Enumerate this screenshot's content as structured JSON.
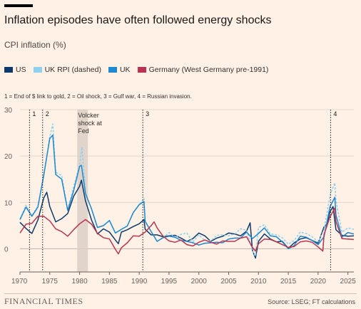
{
  "title": "Inflation episodes have often followed energy shocks",
  "subtitle": "CPI inflation (%)",
  "note": "1 = End of $ link to gold, 2 = Oil shock, 3 = Gulf war, 4 = Russian invasion.",
  "footer": {
    "brand": "FINANCIAL TIMES",
    "source": "Source: LSEG; FT calculations"
  },
  "colors": {
    "background": "#fff1e5",
    "us": "#0d3a6b",
    "uk_rpi": "#8ed0ee",
    "uk": "#1e88d0",
    "germany": "#b8344f",
    "shading": "#d9cdc3"
  },
  "chart_data": {
    "type": "line",
    "xlabel": "",
    "ylabel": "",
    "xlim": [
      1970,
      2026
    ],
    "ylim": [
      -5,
      30
    ],
    "xticks": [
      1970,
      1975,
      1980,
      1985,
      1990,
      1995,
      2000,
      2005,
      2010,
      2015,
      2020,
      2025
    ],
    "yticks": [
      0,
      10,
      20,
      30
    ],
    "legend_position": "top",
    "events": [
      {
        "label": "1",
        "x": 1971.6
      },
      {
        "label": "2",
        "x": 1973.8
      },
      {
        "label": "3",
        "x": 1990.6
      },
      {
        "label": "4",
        "x": 2022.1
      }
    ],
    "shaded_periods": [
      {
        "start": 1979.6,
        "end": 1981.4,
        "label": "Volcker shock at Fed"
      }
    ],
    "series": [
      {
        "name": "US",
        "color": "#0d3a6b",
        "dash": false,
        "x": [
          1970,
          1971,
          1972,
          1973,
          1974,
          1974.5,
          1975,
          1976,
          1977,
          1978,
          1979,
          1980,
          1980.3,
          1981,
          1982,
          1983,
          1984,
          1985,
          1986,
          1986.5,
          1987,
          1988,
          1989,
          1990,
          1990.8,
          1991,
          1992,
          1993,
          1994,
          1995,
          1996,
          1997,
          1998,
          1999,
          2000,
          2001,
          2002,
          2003,
          2004,
          2005,
          2006,
          2007,
          2008,
          2008.6,
          2009,
          2009.5,
          2010,
          2011,
          2012,
          2013,
          2014,
          2015,
          2016,
          2017,
          2018,
          2019,
          2020,
          2021,
          2021.5,
          2022,
          2022.5,
          2023,
          2024,
          2025,
          2026
        ],
        "y": [
          5.7,
          4.4,
          3.3,
          6.2,
          11.0,
          12.2,
          9.1,
          5.8,
          6.5,
          7.6,
          11.3,
          13.5,
          14.8,
          10.3,
          6.2,
          3.2,
          4.3,
          3.6,
          1.9,
          1.1,
          3.6,
          4.1,
          4.8,
          5.4,
          6.3,
          4.2,
          3.0,
          3.0,
          2.6,
          2.8,
          2.9,
          2.3,
          1.6,
          2.2,
          3.4,
          2.8,
          1.6,
          2.3,
          2.7,
          3.4,
          3.2,
          2.8,
          3.8,
          5.6,
          -0.4,
          -2.0,
          1.6,
          3.2,
          2.1,
          1.5,
          1.6,
          0.1,
          1.3,
          2.1,
          2.4,
          1.8,
          1.2,
          4.7,
          5.4,
          8.0,
          9.1,
          4.1,
          2.9,
          2.7,
          2.8
        ]
      },
      {
        "name": "UK RPI (dashed)",
        "color": "#8ed0ee",
        "dash": true,
        "x": [
          1970,
          1971,
          1972,
          1973,
          1974,
          1975,
          1975.5,
          1976,
          1977,
          1978,
          1979,
          1980,
          1980.4,
          1981,
          1982,
          1983,
          1984,
          1985,
          1986,
          1987,
          1988,
          1989,
          1990,
          1990.8,
          1991,
          1992,
          1993,
          1994,
          1995,
          1996,
          1997,
          1998,
          1999,
          2000,
          2001,
          2002,
          2003,
          2004,
          2005,
          2006,
          2007,
          2008,
          2009,
          2009.5,
          2010,
          2011,
          2012,
          2013,
          2014,
          2015,
          2016,
          2017,
          2018,
          2019,
          2020,
          2021,
          2022,
          2022.8,
          2023,
          2024,
          2025,
          2026
        ],
        "y": [
          6.4,
          9.4,
          7.1,
          9.2,
          16.0,
          24.2,
          26.9,
          16.5,
          15.8,
          8.3,
          13.4,
          18.0,
          21.9,
          11.9,
          8.6,
          4.6,
          5.0,
          6.1,
          3.4,
          4.2,
          4.9,
          7.8,
          9.5,
          10.9,
          5.9,
          3.7,
          1.6,
          2.4,
          3.5,
          2.4,
          3.1,
          3.4,
          1.5,
          3.0,
          1.8,
          1.7,
          2.9,
          3.0,
          2.8,
          3.2,
          4.3,
          4.0,
          -0.5,
          -1.6,
          4.6,
          5.2,
          3.2,
          3.0,
          2.4,
          1.0,
          1.8,
          3.6,
          3.3,
          2.6,
          1.5,
          4.1,
          11.6,
          14.2,
          10.4,
          3.6,
          4.5,
          4.2
        ]
      },
      {
        "name": "UK",
        "color": "#1e88d0",
        "dash": false,
        "x": [
          1970,
          1971,
          1972,
          1973,
          1974,
          1975,
          1975.5,
          1976,
          1977,
          1978,
          1979,
          1980,
          1980.3,
          1981,
          1982,
          1983,
          1984,
          1985,
          1986,
          1987,
          1988,
          1989,
          1990,
          1990.8,
          1991,
          1992,
          1993,
          1994,
          1995,
          1996,
          1997,
          1998,
          1999,
          2000,
          2001,
          2002,
          2003,
          2004,
          2005,
          2006,
          2007,
          2008,
          2009,
          2010,
          2011,
          2012,
          2013,
          2014,
          2015,
          2016,
          2017,
          2018,
          2019,
          2020,
          2021,
          2022,
          2022.8,
          2023,
          2024,
          2025,
          2026
        ],
        "y": [
          6.3,
          9.0,
          7.0,
          9.0,
          15.9,
          23.8,
          24.5,
          16.0,
          15.0,
          8.3,
          12.5,
          17.8,
          18.0,
          11.9,
          8.6,
          4.6,
          5.0,
          6.1,
          3.4,
          4.2,
          4.9,
          7.8,
          9.5,
          10.2,
          5.9,
          3.7,
          1.6,
          2.4,
          2.7,
          2.5,
          1.8,
          1.6,
          1.3,
          0.8,
          1.2,
          1.3,
          1.4,
          1.3,
          2.1,
          2.3,
          2.3,
          3.6,
          2.2,
          3.3,
          4.5,
          2.8,
          2.6,
          1.5,
          0.0,
          0.7,
          2.7,
          2.5,
          1.8,
          0.9,
          2.6,
          9.1,
          11.1,
          7.3,
          2.5,
          3.5,
          3.2
        ]
      },
      {
        "name": "Germany (West Germany pre-1991)",
        "color": "#b8344f",
        "dash": false,
        "x": [
          1970,
          1971,
          1972,
          1973,
          1974,
          1975,
          1976,
          1977,
          1978,
          1979,
          1980,
          1981,
          1982,
          1983,
          1984,
          1985,
          1986,
          1986.5,
          1987,
          1988,
          1989,
          1990,
          1991,
          1992,
          1992.5,
          1993,
          1994,
          1995,
          1996,
          1997,
          1998,
          1999,
          2000,
          2001,
          2002,
          2003,
          2004,
          2005,
          2006,
          2007,
          2008,
          2009,
          2009.5,
          2010,
          2011,
          2012,
          2013,
          2014,
          2015,
          2016,
          2017,
          2018,
          2019,
          2020,
          2020.8,
          2021,
          2022,
          2022.8,
          2023,
          2024,
          2025,
          2026
        ],
        "y": [
          3.4,
          5.3,
          5.5,
          7.0,
          7.0,
          6.0,
          4.3,
          3.7,
          2.7,
          4.1,
          5.4,
          6.3,
          5.3,
          3.3,
          2.4,
          2.1,
          -0.1,
          -1.1,
          0.2,
          1.3,
          2.8,
          2.7,
          3.6,
          5.0,
          5.8,
          4.5,
          2.7,
          1.7,
          1.4,
          1.9,
          0.9,
          0.6,
          1.4,
          1.9,
          1.4,
          1.0,
          1.7,
          1.6,
          1.6,
          2.3,
          2.6,
          0.3,
          -0.5,
          1.1,
          2.1,
          2.0,
          1.5,
          0.9,
          0.3,
          0.5,
          1.5,
          1.7,
          1.4,
          0.4,
          -0.5,
          3.1,
          6.9,
          8.8,
          5.9,
          2.2,
          2.1,
          2.0
        ]
      }
    ]
  }
}
